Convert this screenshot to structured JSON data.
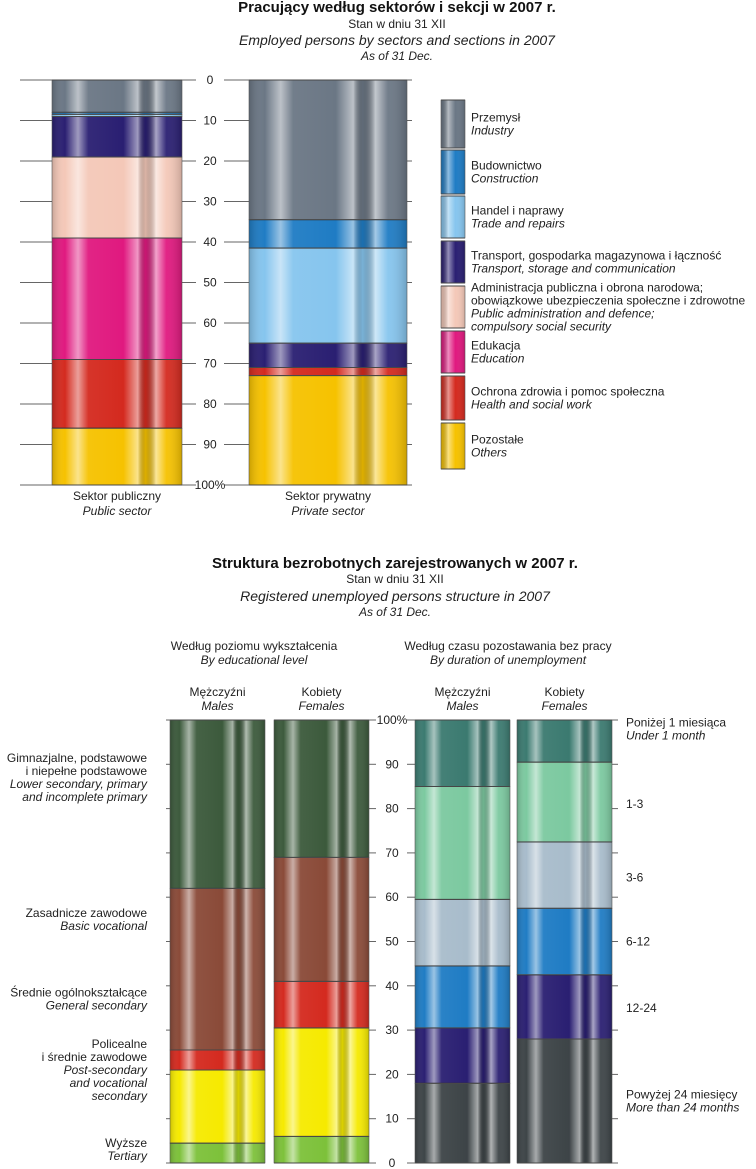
{
  "top": {
    "title": "Pracujący według sektorów i sekcji w 2007 r.",
    "subtitle": "Stan w dniu 31 XII",
    "title_en": "Employed persons by sectors and sections in 2007",
    "subtitle_en": "As of 31 Dec."
  },
  "bottom": {
    "title": "Struktura bezrobotnych zarejestrowanych w 2007 r.",
    "subtitle": "Stan w dniu 31 XII",
    "title_en": "Registered unemployed persons structure in 2007",
    "subtitle_en": "As of 31 Dec.",
    "group_edu": "Według poziomu wykształcenia",
    "group_edu_en": "By educational level",
    "group_dur": "Według czasu pozostawania bez pracy",
    "group_dur_en": "By duration of unemployment"
  },
  "chart_data": [
    {
      "type": "bar",
      "stacked": true,
      "title": "Pracujący według sektorów i sekcji w 2007 r.",
      "ylim": [
        0,
        100
      ],
      "y_ticks": [
        "0",
        "10",
        "20",
        "30",
        "40",
        "50",
        "60",
        "70",
        "80",
        "90",
        "100%"
      ],
      "y_axis_direction": "top-to-bottom",
      "categories": [
        {
          "name": "Sektor publiczny",
          "name_en": "Public sector"
        },
        {
          "name": "Sektor prywatny",
          "name_en": "Private sector"
        }
      ],
      "series": [
        {
          "name": "Przemysł",
          "name_en": "Industry",
          "color": "#6b7785",
          "values": [
            8,
            34.5
          ]
        },
        {
          "name": "Budownictwo",
          "name_en": "Construction",
          "color": "#1f7cc4",
          "values": [
            0.5,
            7
          ]
        },
        {
          "name": "Handel i naprawy",
          "name_en": "Trade and repairs",
          "color": "#86c5ee",
          "values": [
            0.5,
            23.5
          ]
        },
        {
          "name": "Transport, gospodarka magazynowa i łączność",
          "name_en": "Transport, storage and communication",
          "color": "#2a1f72",
          "values": [
            10,
            6
          ]
        },
        {
          "name": "Administracja publiczna i obrona narodowa; obowiązkowe ubezpieczenia społeczne i zdrowotne",
          "name_en": "Public administration and defence; compulsory social security",
          "color": "#f4c8b8",
          "values": [
            20,
            0
          ]
        },
        {
          "name": "Edukacja",
          "name_en": "Education",
          "color": "#e0197f",
          "values": [
            30,
            0
          ]
        },
        {
          "name": "Ochrona zdrowia i pomoc społeczna",
          "name_en": "Health and social work",
          "color": "#d42a1f",
          "values": [
            17,
            2
          ]
        },
        {
          "name": "Pozostałe",
          "name_en": "Others",
          "color": "#f6c200",
          "values": [
            14,
            27
          ]
        }
      ],
      "legend_lines": [
        [
          "Przemysł",
          "Industry"
        ],
        [
          "Budownictwo",
          "Construction"
        ],
        [
          "Handel i naprawy",
          "Trade and repairs"
        ],
        [
          "Transport, gospodarka magazynowa i łączność",
          "Transport, storage and communication"
        ],
        [
          "Administracja publiczna i obrona narodowa;",
          "obowiązkowe ubezpieczenia społeczne i zdrowotne",
          "Public administration and defence;",
          "compulsory social security"
        ],
        [
          "Edukacja",
          "Education"
        ],
        [
          "Ochrona zdrowia i pomoc społeczna",
          "Health and social work"
        ],
        [
          "Pozostałe",
          "Others"
        ]
      ],
      "legend_placement": "right"
    },
    {
      "type": "bar",
      "stacked": true,
      "title": "Struktura bezrobotnych zarejestrowanych w 2007 r.",
      "ylim": [
        0,
        100
      ],
      "y_ticks": [
        "0",
        "10",
        "20",
        "30",
        "40",
        "50",
        "60",
        "70",
        "80",
        "90",
        "100%"
      ],
      "y_axis_direction": "bottom-to-top",
      "groups": [
        {
          "name": "Według poziomu wykształcenia",
          "name_en": "By educational level",
          "categories": [
            {
              "name": "Mężczyźni",
              "name_en": "Males"
            },
            {
              "name": "Kobiety",
              "name_en": "Females"
            }
          ],
          "series": [
            {
              "name": "Wyższe",
              "name_en": "Tertiary",
              "color": "#7dc13a",
              "values": [
                4.5,
                6
              ]
            },
            {
              "name": "Policealne i średnie zawodowe",
              "name_en": "Post-secondary and vocational secondary",
              "color": "#f6ea00",
              "values": [
                16.5,
                24.5
              ]
            },
            {
              "name": "Średnie ogólnokształcące",
              "name_en": "General secondary",
              "color": "#d42a1f",
              "values": [
                4.5,
                10.5
              ]
            },
            {
              "name": "Zasadnicze zawodowe",
              "name_en": "Basic vocational",
              "color": "#8a4a38",
              "values": [
                36.5,
                28
              ]
            },
            {
              "name": "Gimnazjalne, podstawowe i niepełne podstawowe",
              "name_en": "Lower secondary, primary and incomplete primary",
              "color": "#3c5a3c",
              "values": [
                38,
                31
              ]
            }
          ],
          "labels": [
            {
              "pos": 87,
              "lines": [
                "Gimnazjalne, podstawowe",
                "i niepełne podstawowe",
                "Lower secondary, primary",
                "and incomplete primary"
              ]
            },
            {
              "pos": 55,
              "lines": [
                "Zasadnicze zawodowe",
                "Basic vocational"
              ]
            },
            {
              "pos": 37,
              "lines": [
                "Średnie ogólnokształcące",
                "General secondary"
              ]
            },
            {
              "pos": 21,
              "lines": [
                "Policealne",
                "i średnie zawodowe",
                "Post-secondary",
                "and vocational",
                "secondary"
              ]
            },
            {
              "pos": 3,
              "lines": [
                "Wyższe",
                "Tertiary"
              ]
            }
          ]
        },
        {
          "name": "Według czasu pozostawania bez pracy",
          "name_en": "By duration of unemployment",
          "categories": [
            {
              "name": "Mężczyźni",
              "name_en": "Males"
            },
            {
              "name": "Kobiety",
              "name_en": "Females"
            }
          ],
          "series": [
            {
              "name": "Powyżej 24 miesięcy",
              "name_en": "More than 24 months",
              "color": "#3d4447",
              "values": [
                18,
                28
              ]
            },
            {
              "name": "12-24",
              "color": "#2a1f72",
              "values": [
                12.5,
                14.5
              ]
            },
            {
              "name": "6-12",
              "color": "#1f7cc4",
              "values": [
                14,
                15
              ]
            },
            {
              "name": "3-6",
              "color": "#a8bccb",
              "values": [
                15,
                15
              ]
            },
            {
              "name": "1-3",
              "color": "#7cc9a0",
              "values": [
                25.5,
                18
              ]
            },
            {
              "name": "Poniżej 1 miesiąca",
              "name_en": "Under 1 month",
              "color": "#3b7a70",
              "values": [
                15,
                9.5
              ]
            }
          ],
          "labels": [
            {
              "pos": 98,
              "lines": [
                "Poniżej 1 miesiąca",
                "Under 1 month"
              ]
            },
            {
              "pos": 81,
              "lines": [
                "1-3"
              ]
            },
            {
              "pos": 64.5,
              "lines": [
                "3-6"
              ]
            },
            {
              "pos": 50,
              "lines": [
                "6-12"
              ]
            },
            {
              "pos": 35,
              "lines": [
                "12-24"
              ]
            },
            {
              "pos": 14,
              "lines": [
                "Powyżej 24 miesięcy",
                "More than 24 months"
              ]
            }
          ]
        }
      ]
    }
  ]
}
